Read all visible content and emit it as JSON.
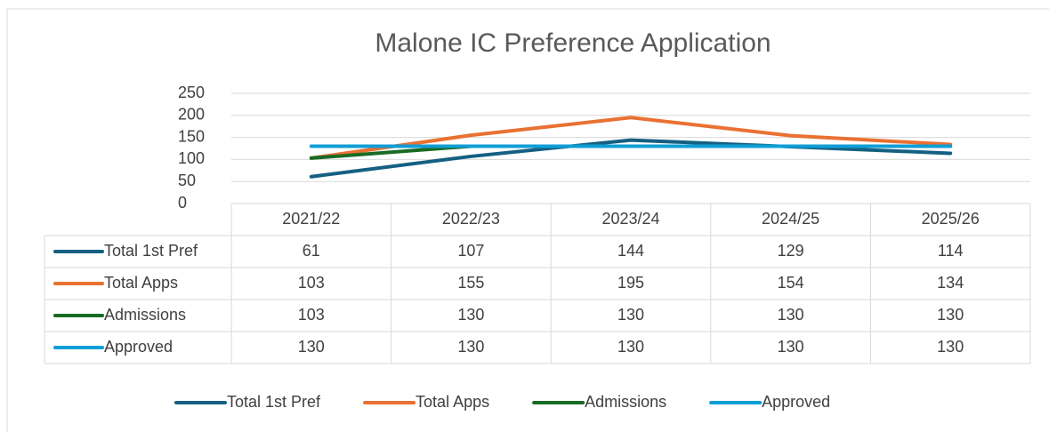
{
  "chart_data": {
    "type": "line",
    "title": "Malone IC Preference Application",
    "categories": [
      "2021/22",
      "2022/23",
      "2023/24",
      "2024/25",
      "2025/26"
    ],
    "series": [
      {
        "name": "Total 1st Pref",
        "color": "#156082",
        "values": [
          61,
          107,
          144,
          129,
          114
        ]
      },
      {
        "name": "Total Apps",
        "color": "#e97132",
        "values": [
          103,
          155,
          195,
          154,
          134
        ]
      },
      {
        "name": "Admissions",
        "color": "#196b24",
        "values": [
          103,
          130,
          130,
          130,
          130
        ]
      },
      {
        "name": "Approved",
        "color": "#0f9ed5",
        "values": [
          130,
          130,
          130,
          130,
          130
        ]
      }
    ],
    "ylim": [
      0,
      250
    ],
    "yticks": [
      0,
      50,
      100,
      150,
      200,
      250
    ],
    "grid": true,
    "data_table": true,
    "legend": "bottom"
  }
}
